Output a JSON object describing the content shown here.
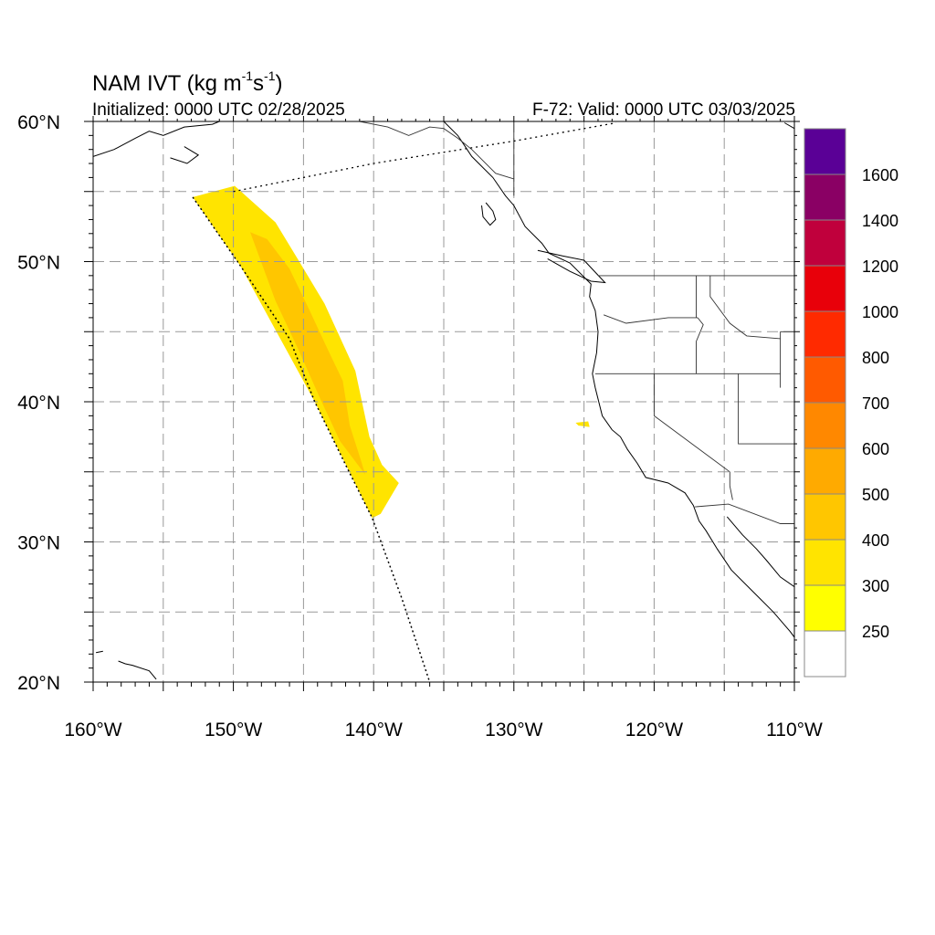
{
  "header": {
    "title_prefix": "NAM IVT (kg m",
    "title_exp1": "-1",
    "title_mid": "s",
    "title_exp2": "-1",
    "title_suffix": ")",
    "initialized": "Initialized: 0000 UTC 02/28/2025",
    "valid": "F-72: Valid: 0000 UTC 03/03/2025"
  },
  "map": {
    "lon_range": [
      -160,
      -110
    ],
    "lat_range": [
      20,
      60
    ],
    "gridlines_lon": [
      -155,
      -150,
      -145,
      -140,
      -135,
      -130,
      -125,
      -120,
      -115
    ],
    "gridlines_lat": [
      25,
      30,
      35,
      40,
      45,
      50,
      55
    ],
    "lon_labels": [
      {
        "lon": -160,
        "text": "160°W"
      },
      {
        "lon": -150,
        "text": "150°W"
      },
      {
        "lon": -140,
        "text": "140°W"
      },
      {
        "lon": -130,
        "text": "130°W"
      },
      {
        "lon": -120,
        "text": "120°W"
      },
      {
        "lon": -110,
        "text": "110°W"
      }
    ],
    "lat_labels": [
      {
        "lat": 60,
        "text": "60°N"
      },
      {
        "lat": 50,
        "text": "50°N"
      },
      {
        "lat": 40,
        "text": "40°N"
      },
      {
        "lat": 30,
        "text": "30°N"
      },
      {
        "lat": 20,
        "text": "20°N"
      }
    ]
  },
  "colorbar": {
    "levels": [
      "1600",
      "1400",
      "1200",
      "1000",
      "800",
      "700",
      "600",
      "500",
      "400",
      "300",
      "250"
    ],
    "colors": [
      "#5a0096",
      "#8a0064",
      "#c0003c",
      "#e8000a",
      "#ff2a00",
      "#ff5a00",
      "#ff8800",
      "#ffaa00",
      "#ffc600",
      "#ffe400",
      "#ffff00",
      "#ffffff"
    ]
  },
  "fill": {
    "outer_color": "#ffe400",
    "inner_color": "#ffc600",
    "ivt_plume_outer": [
      [
        -152.9,
        54.6
      ],
      [
        -149.9,
        55.4
      ],
      [
        -147,
        52.8
      ],
      [
        -145.3,
        50
      ],
      [
        -143.5,
        47
      ],
      [
        -141.3,
        42.2
      ],
      [
        -140.3,
        37.5
      ],
      [
        -139.4,
        35.5
      ],
      [
        -138.2,
        34.2
      ],
      [
        -139.5,
        32
      ],
      [
        -140.1,
        31.7
      ],
      [
        -144.2,
        40
      ],
      [
        -149.5,
        49.7
      ]
    ],
    "ivt_plume_inner": [
      [
        -148.8,
        52.1
      ],
      [
        -147.6,
        51.6
      ],
      [
        -146,
        49.5
      ],
      [
        -144.6,
        46.6
      ],
      [
        -143.3,
        43.8
      ],
      [
        -142.2,
        41.5
      ],
      [
        -141.7,
        38.3
      ],
      [
        -140.9,
        35.8
      ],
      [
        -140.6,
        34.8
      ],
      [
        -142.4,
        37.2
      ],
      [
        -143.8,
        40.2
      ],
      [
        -145.4,
        43.8
      ],
      [
        -147,
        47.2
      ]
    ],
    "ivt_blob": [
      [
        -125.6,
        38.5
      ],
      [
        -124.7,
        38.6
      ],
      [
        -124.6,
        38.2
      ],
      [
        -125.4,
        38.3
      ]
    ]
  },
  "lines": {
    "boundary_dotted": [
      [
        -150,
        55
      ],
      [
        -140,
        57
      ],
      [
        -130,
        58.6
      ],
      [
        -122.7,
        59.9
      ]
    ],
    "plume_edge_dotted": [
      [
        -152.9,
        54.6
      ],
      [
        -149.5,
        49.7
      ],
      [
        -146,
        44.5
      ],
      [
        -144.2,
        40
      ],
      [
        -142,
        35.5
      ],
      [
        -140.1,
        31.7
      ],
      [
        -138,
        26
      ],
      [
        -136,
        20
      ]
    ],
    "coastline": [
      [
        -135,
        60
      ],
      [
        -134,
        59
      ],
      [
        -133,
        57.5
      ],
      [
        -131.5,
        56
      ],
      [
        -130.6,
        54.7
      ],
      [
        -130,
        54
      ],
      [
        -129.2,
        52.5
      ],
      [
        -128,
        51.3
      ],
      [
        -127.5,
        50.6
      ],
      [
        -126,
        49.9
      ],
      [
        -124.5,
        48.4
      ],
      [
        -124.6,
        47.5
      ],
      [
        -124.2,
        46.5
      ],
      [
        -124,
        45
      ],
      [
        -124.1,
        43.5
      ],
      [
        -124.4,
        42
      ],
      [
        -124.2,
        41
      ],
      [
        -123.7,
        39
      ],
      [
        -123,
        38
      ],
      [
        -122.4,
        37.5
      ],
      [
        -121.9,
        36.6
      ],
      [
        -121.2,
        35.6
      ],
      [
        -120.6,
        34.6
      ],
      [
        -119,
        34.2
      ],
      [
        -117.8,
        33.5
      ],
      [
        -117.2,
        32.6
      ],
      [
        -116.8,
        31.5
      ],
      [
        -116.3,
        30.8
      ],
      [
        -115.5,
        29.5
      ],
      [
        -114.5,
        28
      ],
      [
        -112.5,
        26
      ],
      [
        -111.5,
        25
      ],
      [
        -110.3,
        23.6
      ],
      [
        -110,
        23.2
      ]
    ],
    "coastline_gulf": [
      [
        -114.8,
        31.8
      ],
      [
        -113.7,
        30.5
      ],
      [
        -112.7,
        29.5
      ],
      [
        -112,
        28.7
      ],
      [
        -111,
        27.5
      ],
      [
        -110,
        26.8
      ]
    ],
    "coastline_bc": [
      [
        -132,
        54.2
      ],
      [
        -131.5,
        53.6
      ],
      [
        -131.3,
        53
      ],
      [
        -131.7,
        52.6
      ],
      [
        -132.2,
        53.2
      ],
      [
        -132.3,
        54
      ]
    ],
    "coastline_vi": [
      [
        -128.3,
        50.8
      ],
      [
        -126.5,
        50.4
      ],
      [
        -125,
        50.1
      ],
      [
        -123.5,
        48.5
      ],
      [
        -124.5,
        48.6
      ],
      [
        -126,
        49.3
      ],
      [
        -127.6,
        50.2
      ]
    ],
    "coastline_ak": [
      [
        -160,
        57.5
      ],
      [
        -158.5,
        58
      ],
      [
        -157,
        58.8
      ],
      [
        -156,
        59.3
      ],
      [
        -155,
        59
      ],
      [
        -153.5,
        59.6
      ],
      [
        -151.5,
        59.8
      ],
      [
        -151,
        60
      ]
    ],
    "coastline_kodiak": [
      [
        -154.5,
        57.4
      ],
      [
        -153.3,
        57
      ],
      [
        -152.5,
        57.6
      ],
      [
        -153.5,
        58.2
      ]
    ],
    "coastline_ne": [
      [
        -110,
        59.5
      ],
      [
        -110.7,
        59.9
      ]
    ],
    "coastline_hawaii": [
      [
        -159.8,
        22.1
      ],
      [
        -159.3,
        22.2
      ]
    ],
    "coastline_hawaii2": [
      [
        -158.2,
        21.5
      ],
      [
        -157.7,
        21.3
      ],
      [
        -157.2,
        21.2
      ],
      [
        -156,
        20.8
      ],
      [
        -155.5,
        20.2
      ]
    ],
    "state_lines": [
      [
        [
          -123.6,
          46.2
        ],
        [
          -122,
          45.6
        ],
        [
          -119,
          46
        ],
        [
          -116.9,
          46
        ]
      ],
      [
        [
          -124.2,
          42
        ],
        [
          -120,
          42
        ],
        [
          -117,
          42
        ],
        [
          -111,
          42
        ]
      ],
      [
        [
          -120,
          42
        ],
        [
          -120,
          39
        ],
        [
          -114.6,
          35
        ]
      ],
      [
        [
          -117,
          49
        ],
        [
          -117,
          46
        ]
      ],
      [
        [
          -116.9,
          46
        ],
        [
          -116.5,
          45.5
        ],
        [
          -117,
          44.3
        ],
        [
          -117,
          42
        ]
      ],
      [
        [
          -116,
          49
        ],
        [
          -116,
          47.5
        ],
        [
          -114.6,
          45.6
        ],
        [
          -113.4,
          44.7
        ],
        [
          -111,
          44.5
        ]
      ],
      [
        [
          -117.1,
          32.5
        ],
        [
          -114.7,
          32.7
        ],
        [
          -111,
          31.3
        ],
        [
          -110,
          31.3
        ]
      ],
      [
        [
          -114,
          42
        ],
        [
          -114,
          37
        ],
        [
          -110,
          37
        ]
      ],
      [
        [
          -114.6,
          35
        ],
        [
          -114.6,
          34
        ],
        [
          -114.4,
          33
        ]
      ],
      [
        [
          -111,
          45
        ],
        [
          -111,
          41
        ]
      ],
      [
        [
          -110,
          45
        ],
        [
          -111,
          45
        ]
      ],
      [
        [
          -141,
          60
        ],
        [
          -139,
          59.6
        ],
        [
          -137.5,
          59
        ],
        [
          -136,
          59.6
        ],
        [
          -135,
          59.5
        ],
        [
          -134,
          58.8
        ],
        [
          -133,
          58
        ],
        [
          -131.3,
          56.3
        ],
        [
          -130,
          55.9
        ],
        [
          -130,
          54.7
        ]
      ],
      [
        [
          -130,
          55.9
        ],
        [
          -130,
          60
        ]
      ],
      [
        [
          -124,
          49
        ],
        [
          -110,
          49
        ]
      ]
    ]
  }
}
